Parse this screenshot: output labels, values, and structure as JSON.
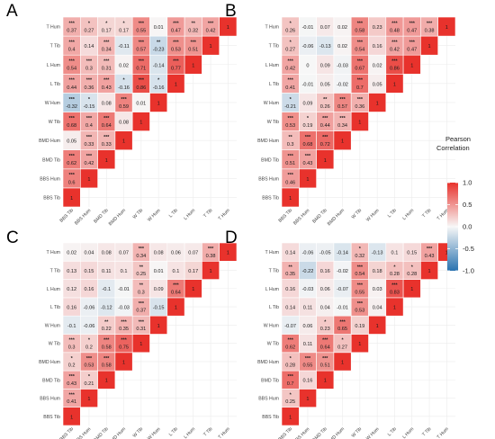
{
  "chart_data": [
    {
      "type": "heatmap",
      "panel": "A",
      "variables": [
        "BBS Tib",
        "BBS Hum",
        "BMD Tib",
        "BMD Hum",
        "W Tib",
        "W Hum",
        "L Tib",
        "L Hum",
        "T Tib",
        "T Hum"
      ],
      "values": [
        [
          1
        ],
        [
          0.6,
          1
        ],
        [
          0.62,
          0.42,
          1
        ],
        [
          0.05,
          0.33,
          0.33,
          1
        ],
        [
          0.68,
          0.4,
          0.64,
          0.08,
          1
        ],
        [
          -0.32,
          -0.15,
          0.08,
          0.59,
          0.01,
          1
        ],
        [
          0.44,
          0.36,
          0.43,
          -0.16,
          0.86,
          -0.16,
          1
        ],
        [
          0.54,
          0.3,
          0.31,
          0.02,
          0.71,
          -0.14,
          0.77,
          1
        ],
        [
          0.4,
          0.14,
          0.34,
          -0.11,
          0.57,
          -0.23,
          0.53,
          0.51,
          1
        ],
        [
          0.37,
          0.27,
          0.17,
          0.17,
          0.55,
          0.01,
          0.47,
          0.32,
          0.42,
          1
        ]
      ],
      "significance": [
        [
          ""
        ],
        [
          "***",
          ""
        ],
        [
          "***",
          "***",
          ""
        ],
        [
          "",
          "***",
          "***",
          ""
        ],
        [
          "***",
          "***",
          "***",
          "",
          ""
        ],
        [
          "***",
          "*",
          "",
          "***",
          "",
          ""
        ],
        [
          "***",
          "***",
          "***",
          "*",
          "***",
          "*",
          ""
        ],
        [
          "***",
          "***",
          "***",
          "",
          "***",
          "",
          "***",
          ""
        ],
        [
          "***",
          "",
          "***",
          "",
          "***",
          "**",
          "***",
          "***",
          ""
        ],
        [
          "***",
          "*",
          "*",
          "*",
          "***",
          "",
          "***",
          "**",
          "***",
          ""
        ]
      ]
    },
    {
      "type": "heatmap",
      "panel": "B",
      "variables": [
        "BBS Tib",
        "BBS Hum",
        "BMD Tib",
        "BMD Hum",
        "W Tib",
        "W Hum",
        "L Tib",
        "L Hum",
        "T Tib",
        "T Hum"
      ],
      "values": [
        [
          1
        ],
        [
          0.46,
          1
        ],
        [
          0.51,
          0.43,
          1
        ],
        [
          0.3,
          0.68,
          0.72,
          1
        ],
        [
          0.53,
          0.19,
          0.44,
          0.34,
          1
        ],
        [
          -0.21,
          0.09,
          0.26,
          0.57,
          0.36,
          1
        ],
        [
          0.41,
          -0.01,
          0.05,
          -0.02,
          0.7,
          0.05,
          1
        ],
        [
          0.42,
          0,
          0.09,
          -0.03,
          0.67,
          0.02,
          0.86,
          1
        ],
        [
          0.27,
          -0.06,
          -0.13,
          0.02,
          0.54,
          0.16,
          0.42,
          0.47,
          1
        ],
        [
          0.26,
          -0.01,
          0.07,
          0.02,
          0.58,
          0.23,
          0.48,
          0.47,
          0.38,
          1
        ]
      ],
      "significance": [
        [
          ""
        ],
        [
          "***",
          ""
        ],
        [
          "***",
          "***",
          ""
        ],
        [
          "**",
          "***",
          "***",
          ""
        ],
        [
          "***",
          "*",
          "***",
          "***",
          ""
        ],
        [
          "*",
          "",
          "**",
          "***",
          "***",
          ""
        ],
        [
          "***",
          "",
          "",
          "",
          "***",
          "",
          ""
        ],
        [
          "***",
          "",
          "",
          "",
          "***",
          "",
          "***",
          ""
        ],
        [
          "*",
          "",
          "",
          "",
          "***",
          "",
          "***",
          "***",
          ""
        ],
        [
          "*",
          "",
          "",
          "",
          "***",
          "",
          "***",
          "***",
          "***",
          ""
        ]
      ]
    },
    {
      "type": "heatmap",
      "panel": "C",
      "variables": [
        "BBS Tib",
        "BBS Hum",
        "BMD Tib",
        "BMD Hum",
        "W Tib",
        "W Hum",
        "L Tib",
        "L Hum",
        "T Tib",
        "T Hum"
      ],
      "values": [
        [
          1
        ],
        [
          0.41,
          1
        ],
        [
          0.43,
          0.21,
          1
        ],
        [
          0.2,
          0.53,
          0.58,
          1
        ],
        [
          0.3,
          0.2,
          0.58,
          0.75,
          1
        ],
        [
          -0.1,
          -0.06,
          0.22,
          0.35,
          0.31,
          1
        ],
        [
          0.16,
          -0.06,
          -0.12,
          -0.03,
          0.37,
          -0.15,
          1
        ],
        [
          0.12,
          0.16,
          -0.1,
          -0.01,
          0.3,
          0.09,
          0.64,
          1
        ],
        [
          0.13,
          0.15,
          0.11,
          0.1,
          0.25,
          0.01,
          0.1,
          0.17,
          1
        ],
        [
          0.02,
          0.04,
          0.08,
          0.07,
          0.34,
          0.08,
          0.06,
          0.07,
          0.38,
          1
        ]
      ],
      "significance": [
        [
          ""
        ],
        [
          "***",
          ""
        ],
        [
          "***",
          "*",
          ""
        ],
        [
          "*",
          "***",
          "***",
          ""
        ],
        [
          "***",
          "*",
          "***",
          "***",
          ""
        ],
        [
          "",
          "",
          "**",
          "***",
          "***",
          ""
        ],
        [
          "",
          "",
          "",
          "",
          "***",
          "",
          ""
        ],
        [
          "",
          "",
          "",
          "",
          "**",
          "",
          "***",
          ""
        ],
        [
          "",
          "",
          "",
          "",
          "**",
          "",
          "",
          "",
          ""
        ],
        [
          "",
          "",
          "",
          "",
          "***",
          "",
          "",
          "",
          "***",
          ""
        ]
      ]
    },
    {
      "type": "heatmap",
      "panel": "D",
      "variables": [
        "BBS Tib",
        "BBS Hum",
        "BMD Tib",
        "BMD Hum",
        "W Tib",
        "W Hum",
        "L Tib",
        "L Hum",
        "T Tib",
        "T Hum"
      ],
      "values": [
        [
          1
        ],
        [
          0.25,
          1
        ],
        [
          0.7,
          0.16,
          1
        ],
        [
          0.28,
          0.55,
          0.51,
          1
        ],
        [
          0.62,
          0.11,
          0.64,
          0.27,
          1
        ],
        [
          -0.07,
          0.06,
          0.23,
          0.65,
          0.19,
          1
        ],
        [
          0.14,
          0.11,
          0.04,
          -0.01,
          0.53,
          0.04,
          1
        ],
        [
          0.16,
          -0.03,
          0.06,
          -0.07,
          0.55,
          0.03,
          0.83,
          1
        ],
        [
          0.35,
          -0.22,
          0.16,
          -0.02,
          0.54,
          0.18,
          0.28,
          0.28,
          1
        ],
        [
          0.14,
          -0.06,
          -0.05,
          -0.14,
          0.32,
          -0.13,
          0.1,
          0.15,
          0.43,
          1
        ]
      ],
      "significance": [
        [
          ""
        ],
        [
          "*",
          ""
        ],
        [
          "***",
          "",
          ""
        ],
        [
          "*",
          "***",
          "***",
          ""
        ],
        [
          "***",
          "",
          "***",
          "*",
          ""
        ],
        [
          "",
          "",
          "*",
          "***",
          "",
          ""
        ],
        [
          "",
          "",
          "",
          "",
          "***",
          "",
          ""
        ],
        [
          "",
          "",
          "",
          "",
          "***",
          "",
          "***",
          ""
        ],
        [
          "**",
          "",
          "",
          "",
          "***",
          "",
          "*",
          "*",
          ""
        ],
        [
          "",
          "",
          "",
          "",
          "*",
          "",
          "",
          "",
          "***",
          ""
        ]
      ]
    }
  ],
  "legend": {
    "title_line1": "Pearson",
    "title_line2": "Correlation",
    "ticks": [
      "1.0",
      "0.5",
      "0.0",
      "-0.5",
      "-1.0"
    ],
    "colors": {
      "high": "#e8322c",
      "mid": "#f7f7f7",
      "low": "#2a73b0"
    }
  }
}
